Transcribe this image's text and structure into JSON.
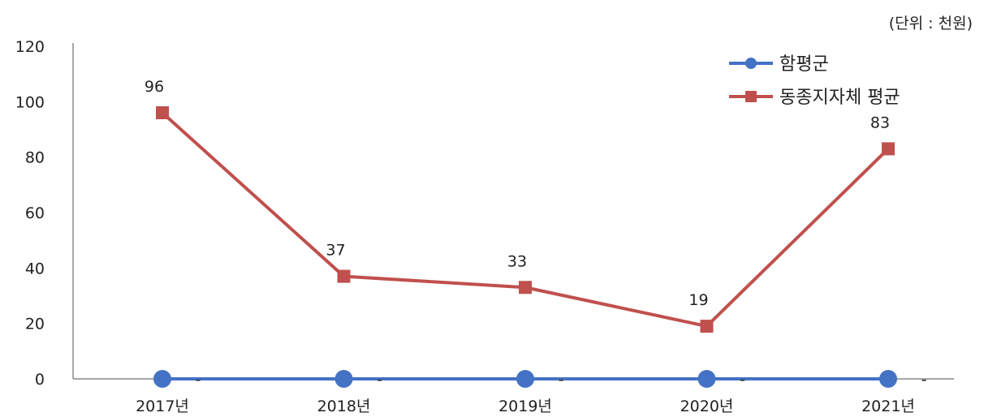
{
  "chart_data": {
    "type": "line",
    "unit_label": "(단위 : 천원)",
    "categories": [
      "2017년",
      "2018년",
      "2019년",
      "2020년",
      "2021년"
    ],
    "ylim": [
      0,
      120
    ],
    "yticks": [
      0,
      20,
      40,
      60,
      80,
      100,
      120
    ],
    "grid": false,
    "legend_position": "top-right",
    "series": [
      {
        "name": "함평군",
        "color": "#4472C4",
        "marker": "circle",
        "values": [
          0,
          0,
          0,
          0,
          0
        ],
        "data_labels": [
          "-",
          "-",
          "-",
          "-",
          "-"
        ]
      },
      {
        "name": "동종지자체 평균",
        "color": "#C0504D",
        "marker": "square",
        "values": [
          96,
          37,
          33,
          19,
          83
        ],
        "data_labels": [
          "96",
          "37",
          "33",
          "19",
          "83"
        ]
      }
    ]
  }
}
